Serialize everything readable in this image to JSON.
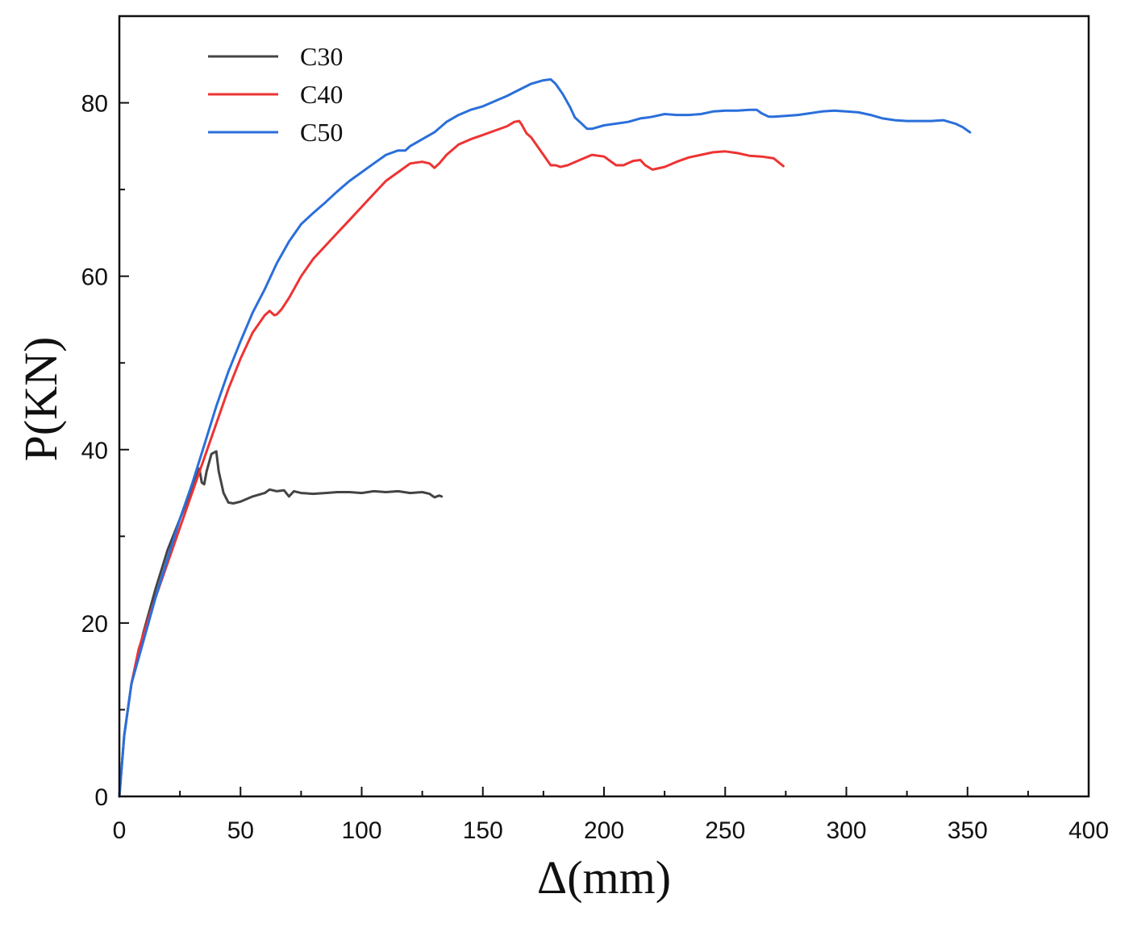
{
  "chart_data": {
    "type": "line",
    "title": "",
    "xlabel": "Δ(mm)",
    "ylabel": "P(KN)",
    "xlim": [
      0,
      400
    ],
    "ylim": [
      0,
      90
    ],
    "xticks": [
      "0",
      "50",
      "100",
      "150",
      "200",
      "250",
      "300",
      "350",
      "400"
    ],
    "xtick_values": [
      0,
      50,
      100,
      150,
      200,
      250,
      300,
      350,
      400
    ],
    "yticks": [
      "0",
      "20",
      "40",
      "60",
      "80"
    ],
    "ytick_values": [
      0,
      20,
      40,
      60,
      80
    ],
    "grid": false,
    "legend_position": "top-left",
    "series": [
      {
        "name": "C30",
        "color": "#444444",
        "x": [
          0,
          2,
          5,
          10,
          15,
          20,
          25,
          30,
          32,
          33,
          34,
          35,
          36,
          38,
          40,
          41,
          43,
          45,
          47,
          50,
          55,
          60,
          62,
          65,
          68,
          70,
          72,
          75,
          80,
          85,
          90,
          95,
          100,
          105,
          110,
          115,
          120,
          125,
          128,
          130,
          132,
          133
        ],
        "y": [
          0,
          7,
          13,
          19,
          24,
          28.5,
          32,
          35.5,
          37,
          37.8,
          36.2,
          36,
          37.5,
          39.5,
          39.8,
          37.5,
          35,
          33.9,
          33.8,
          34,
          34.6,
          35,
          35.4,
          35.2,
          35.3,
          34.6,
          35.2,
          35,
          34.9,
          35,
          35.1,
          35.1,
          35,
          35.2,
          35.1,
          35.2,
          35,
          35.1,
          34.9,
          34.5,
          34.7,
          34.6
        ]
      },
      {
        "name": "C40",
        "color": "#ee3333",
        "x": [
          5,
          8,
          12,
          15,
          20,
          25,
          30,
          35,
          40,
          45,
          50,
          55,
          60,
          62,
          64,
          65,
          67,
          70,
          75,
          80,
          85,
          90,
          95,
          100,
          105,
          110,
          115,
          120,
          125,
          128,
          130,
          132,
          135,
          140,
          145,
          150,
          155,
          160,
          163,
          165,
          166,
          168,
          170,
          175,
          178,
          180,
          182,
          185,
          190,
          195,
          200,
          205,
          208,
          212,
          215,
          217,
          220,
          225,
          230,
          235,
          240,
          245,
          250,
          255,
          260,
          265,
          270,
          274
        ],
        "y": [
          13,
          17,
          20.5,
          23,
          27,
          31,
          35,
          39,
          43,
          47,
          50.5,
          53.5,
          55.5,
          56,
          55.5,
          55.6,
          56.2,
          57.5,
          60,
          62,
          63.5,
          65,
          66.5,
          68,
          69.5,
          71,
          72,
          73,
          73.2,
          73,
          72.5,
          73,
          74,
          75.2,
          75.8,
          76.3,
          76.8,
          77.3,
          77.8,
          77.9,
          77.5,
          76.5,
          76,
          74,
          72.8,
          72.8,
          72.6,
          72.8,
          73.4,
          74,
          73.8,
          72.8,
          72.8,
          73.3,
          73.4,
          72.8,
          72.3,
          72.6,
          73.2,
          73.7,
          74,
          74.3,
          74.4,
          74.2,
          73.9,
          73.8,
          73.6,
          72.7
        ]
      },
      {
        "name": "C50",
        "color": "#2a6fdb",
        "x": [
          0,
          2,
          5,
          7,
          10,
          15,
          20,
          25,
          30,
          35,
          40,
          45,
          50,
          55,
          60,
          65,
          70,
          75,
          80,
          85,
          90,
          95,
          100,
          105,
          110,
          115,
          118,
          120,
          125,
          130,
          135,
          140,
          145,
          150,
          155,
          160,
          165,
          170,
          175,
          178,
          180,
          183,
          186,
          188,
          190,
          193,
          195,
          200,
          205,
          210,
          215,
          218,
          220,
          225,
          230,
          235,
          240,
          245,
          250,
          255,
          260,
          263,
          265,
          268,
          270,
          275,
          280,
          285,
          290,
          295,
          300,
          305,
          310,
          315,
          320,
          325,
          330,
          335,
          340,
          345,
          348,
          351
        ],
        "y": [
          0,
          7,
          13,
          15,
          18,
          23,
          27.5,
          32,
          36,
          40.5,
          45,
          49,
          52.5,
          55.8,
          58.5,
          61.5,
          64,
          66,
          67.3,
          68.5,
          69.8,
          71,
          72,
          73,
          74,
          74.5,
          74.5,
          75,
          75.8,
          76.6,
          77.8,
          78.6,
          79.2,
          79.6,
          80.2,
          80.8,
          81.5,
          82.2,
          82.6,
          82.7,
          82.2,
          81,
          79.5,
          78.3,
          77.8,
          77,
          77,
          77.4,
          77.6,
          77.8,
          78.2,
          78.3,
          78.4,
          78.7,
          78.6,
          78.6,
          78.7,
          79,
          79.1,
          79.1,
          79.2,
          79.2,
          78.8,
          78.4,
          78.4,
          78.5,
          78.6,
          78.8,
          79,
          79.1,
          79,
          78.9,
          78.6,
          78.2,
          78,
          77.9,
          77.9,
          77.9,
          78,
          77.6,
          77.2,
          76.6
        ]
      }
    ]
  }
}
